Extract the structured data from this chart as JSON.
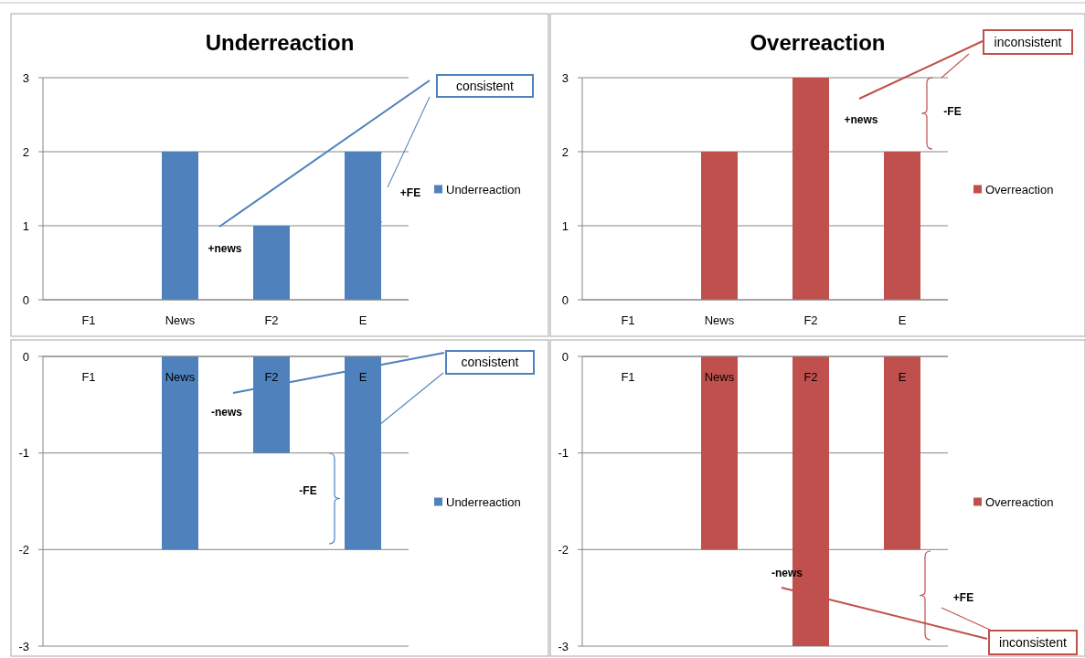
{
  "chart_data": [
    {
      "type": "bar",
      "title": "Underreaction",
      "categories": [
        "F1",
        "News",
        "F2",
        "E"
      ],
      "series": [
        {
          "name": "Underreaction",
          "color": "#4f81bd",
          "values": [
            0,
            2,
            1,
            2
          ]
        }
      ],
      "ylim": [
        0,
        3
      ],
      "yticks": [
        0,
        1,
        2,
        3
      ],
      "grid": "y",
      "legend": "right",
      "annotations": [
        "consistent",
        "+news",
        "+FE"
      ]
    },
    {
      "type": "bar",
      "title": "Overreaction",
      "categories": [
        "F1",
        "News",
        "F2",
        "E"
      ],
      "series": [
        {
          "name": "Overreaction",
          "color": "#c0504d",
          "values": [
            0,
            2,
            3,
            2
          ]
        }
      ],
      "ylim": [
        0,
        3
      ],
      "yticks": [
        0,
        1,
        2,
        3
      ],
      "grid": "y",
      "legend": "right",
      "annotations": [
        "inconsistent",
        "+news",
        "-FE"
      ]
    },
    {
      "type": "bar",
      "categories": [
        "F1",
        "News",
        "F2",
        "E"
      ],
      "series": [
        {
          "name": "Underreaction",
          "color": "#4f81bd",
          "values": [
            0,
            -2,
            -1,
            -2
          ]
        }
      ],
      "ylim": [
        -3,
        0
      ],
      "yticks": [
        -3,
        -2,
        -1,
        0
      ],
      "grid": "y",
      "legend": "right",
      "annotations": [
        "consistent",
        "-news",
        "-FE"
      ]
    },
    {
      "type": "bar",
      "categories": [
        "F1",
        "News",
        "F2",
        "E"
      ],
      "series": [
        {
          "name": "Overreaction",
          "color": "#c0504d",
          "values": [
            0,
            -2,
            -3,
            -2
          ]
        }
      ],
      "ylim": [
        -3,
        0
      ],
      "yticks": [
        -3,
        -2,
        -1,
        0
      ],
      "grid": "y",
      "legend": "right",
      "annotations": [
        "inconsistent",
        "-news",
        "+FE"
      ]
    }
  ]
}
